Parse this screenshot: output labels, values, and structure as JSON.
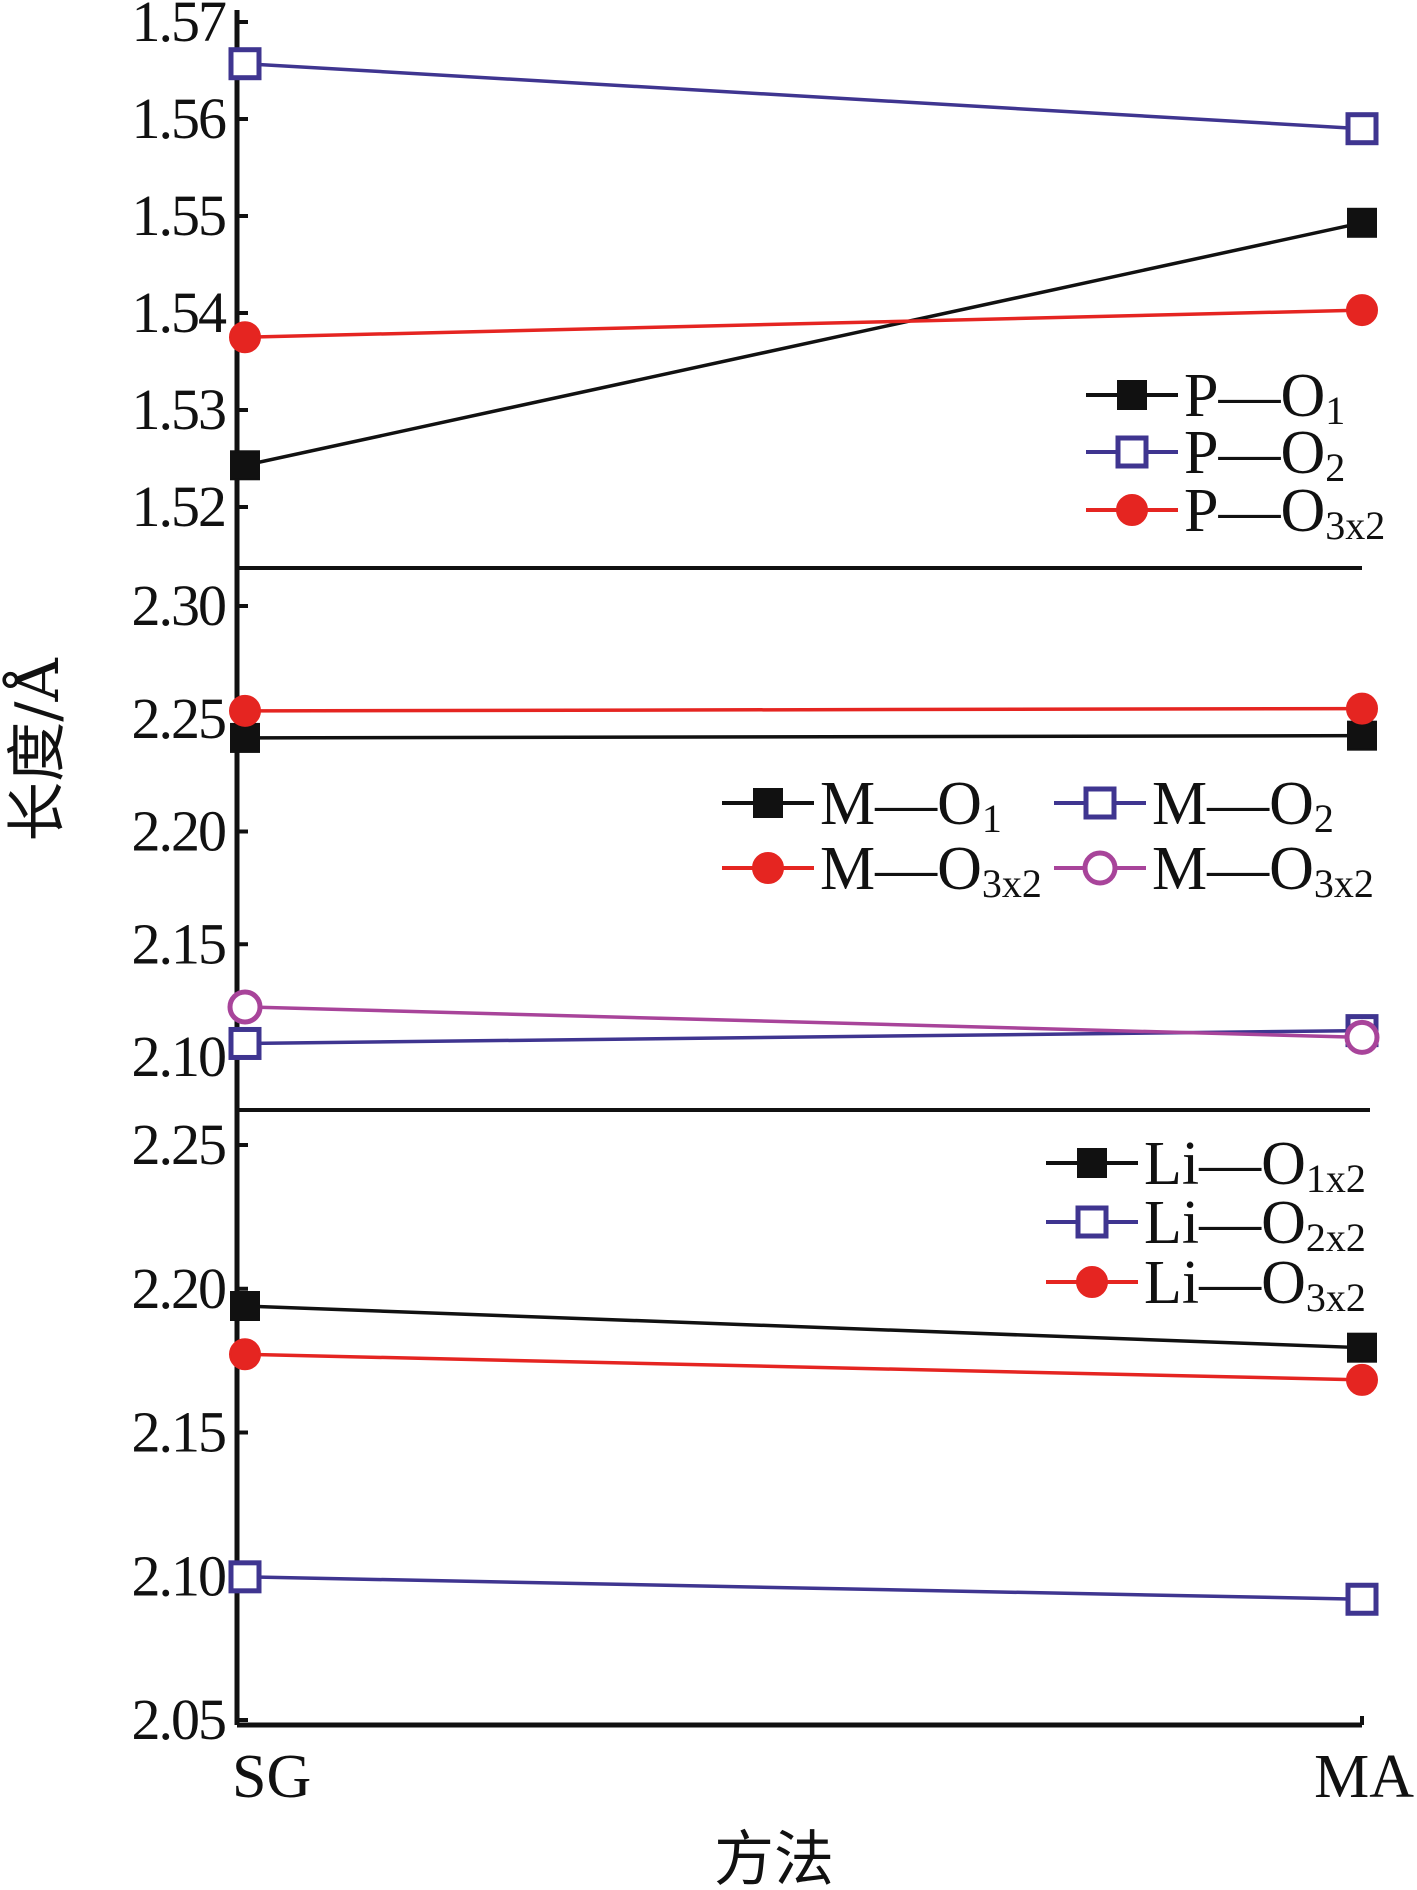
{
  "chart_data": [
    {
      "type": "line",
      "panel": "top",
      "categories": [
        "SG",
        "MA"
      ],
      "ylim": [
        1.515,
        1.572
      ],
      "yticks": [
        "1.57",
        "1.56",
        "1.55",
        "1.54",
        "1.53",
        "1.52"
      ],
      "ytick_values": [
        1.57,
        1.56,
        1.55,
        1.54,
        1.53,
        1.52
      ],
      "legend_placement": "right",
      "series": [
        {
          "name": "P—O",
          "sub": "1",
          "values": [
            1.5243,
            1.5493
          ],
          "color": "#111111",
          "marker": "square-filled"
        },
        {
          "name": "P—O",
          "sub": "2",
          "values": [
            1.5657,
            1.559
          ],
          "color": "#3f3590",
          "marker": "square-open"
        },
        {
          "name": "P—O",
          "sub": "3x2",
          "values": [
            1.5375,
            1.5403
          ],
          "color": "#e52521",
          "marker": "circle-filled"
        }
      ]
    },
    {
      "type": "line",
      "panel": "middle",
      "categories": [
        "SG",
        "MA"
      ],
      "ylim": [
        2.077,
        2.325
      ],
      "yticks": [
        "2.30",
        "2.25",
        "2.20",
        "2.15",
        "2.10"
      ],
      "ytick_values": [
        2.3,
        2.25,
        2.2,
        2.15,
        2.1
      ],
      "legend_placement": "center-right",
      "series": [
        {
          "name": "M—O",
          "sub": "1",
          "values": [
            2.2415,
            2.2425
          ],
          "color": "#111111",
          "marker": "square-filled"
        },
        {
          "name": "M—O",
          "sub": "2",
          "values": [
            2.106,
            2.1117
          ],
          "color": "#3f3590",
          "marker": "square-open"
        },
        {
          "name": "M—O",
          "sub": "3x2",
          "values": [
            2.2535,
            2.2545
          ],
          "color": "#e52521",
          "marker": "circle-filled"
        },
        {
          "name": "M—O",
          "sub": "3x2",
          "values": [
            2.1222,
            2.1087
          ],
          "color": "#a8449a",
          "marker": "circle-open"
        }
      ]
    },
    {
      "type": "line",
      "panel": "bottom",
      "categories": [
        "SG",
        "MA"
      ],
      "ylim": [
        2.05,
        2.277
      ],
      "yticks": [
        "2.25",
        "2.20",
        "2.15",
        "2.10",
        "2.05"
      ],
      "ytick_values": [
        2.25,
        2.2,
        2.15,
        2.1,
        2.05
      ],
      "legend_placement": "top-right",
      "series": [
        {
          "name": "Li—O",
          "sub": "1x2",
          "values": [
            2.194,
            2.1795
          ],
          "color": "#111111",
          "marker": "square-filled"
        },
        {
          "name": "Li—O",
          "sub": "2x2",
          "values": [
            2.0998,
            2.092
          ],
          "color": "#3f3590",
          "marker": "square-open"
        },
        {
          "name": "Li—O",
          "sub": "3x2",
          "values": [
            2.1772,
            2.1683
          ],
          "color": "#e52521",
          "marker": "circle-filled"
        }
      ]
    }
  ],
  "xlabel": "方法",
  "ylabel": "长度/Å"
}
